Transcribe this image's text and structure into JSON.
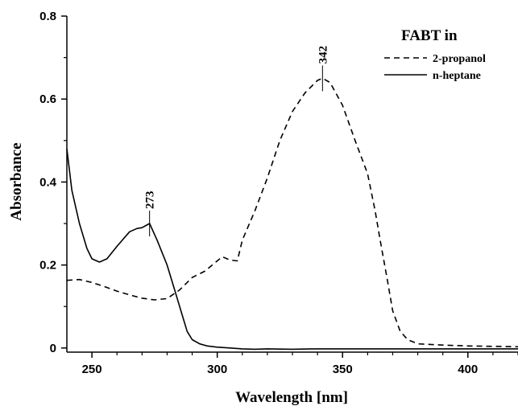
{
  "chart_data": {
    "type": "line",
    "title": "",
    "xlabel": "Wavelength [nm]",
    "ylabel": "Absorbance",
    "xlim": [
      240,
      420
    ],
    "ylim": [
      -0.01,
      0.8
    ],
    "xticks": [
      250,
      300,
      350,
      400
    ],
    "yticks": [
      0,
      0.2,
      0.4,
      0.6,
      0.8
    ],
    "xtick_labels": [
      "250",
      "300",
      "350",
      "400"
    ],
    "ytick_labels": [
      "0",
      "0.2",
      "0.4",
      "0.6",
      "0.8"
    ],
    "grid": false,
    "legend": {
      "title": "FABT in",
      "placement": "top-right"
    },
    "series": [
      {
        "name": "2-propanol",
        "style": "dashed",
        "color": "#000000",
        "x": [
          240,
          245,
          250,
          255,
          260,
          265,
          270,
          275,
          280,
          285,
          290,
          295,
          300,
          302,
          305,
          308,
          310,
          315,
          320,
          325,
          330,
          335,
          340,
          342,
          345,
          350,
          355,
          360,
          363,
          365,
          368,
          370,
          373,
          376,
          380,
          390,
          400,
          410,
          420
        ],
        "y": [
          0.163,
          0.165,
          0.158,
          0.148,
          0.137,
          0.128,
          0.12,
          0.116,
          0.119,
          0.14,
          0.17,
          0.185,
          0.21,
          0.22,
          0.212,
          0.21,
          0.26,
          0.33,
          0.41,
          0.5,
          0.57,
          0.615,
          0.645,
          0.65,
          0.64,
          0.585,
          0.5,
          0.42,
          0.33,
          0.26,
          0.16,
          0.09,
          0.04,
          0.02,
          0.01,
          0.007,
          0.005,
          0.004,
          0.003
        ]
      },
      {
        "name": "n-heptane",
        "style": "solid",
        "color": "#000000",
        "x": [
          240,
          242,
          245,
          248,
          250,
          253,
          256,
          260,
          265,
          268,
          270,
          273,
          276,
          280,
          283,
          286,
          288,
          290,
          293,
          296,
          300,
          305,
          310,
          315,
          320,
          330,
          340,
          350,
          360,
          370,
          380,
          390,
          400,
          410,
          420
        ],
        "y": [
          0.48,
          0.38,
          0.3,
          0.24,
          0.215,
          0.207,
          0.215,
          0.245,
          0.28,
          0.288,
          0.29,
          0.3,
          0.26,
          0.2,
          0.14,
          0.08,
          0.04,
          0.02,
          0.01,
          0.005,
          0.002,
          0.0,
          -0.002,
          -0.003,
          -0.002,
          -0.003,
          -0.002,
          -0.002,
          -0.002,
          -0.002,
          -0.002,
          -0.002,
          -0.002,
          -0.002,
          -0.002
        ]
      }
    ],
    "annotations": [
      {
        "label": "273",
        "x": 273,
        "y": 0.3
      },
      {
        "label": "342",
        "x": 342,
        "y": 0.65
      }
    ]
  }
}
